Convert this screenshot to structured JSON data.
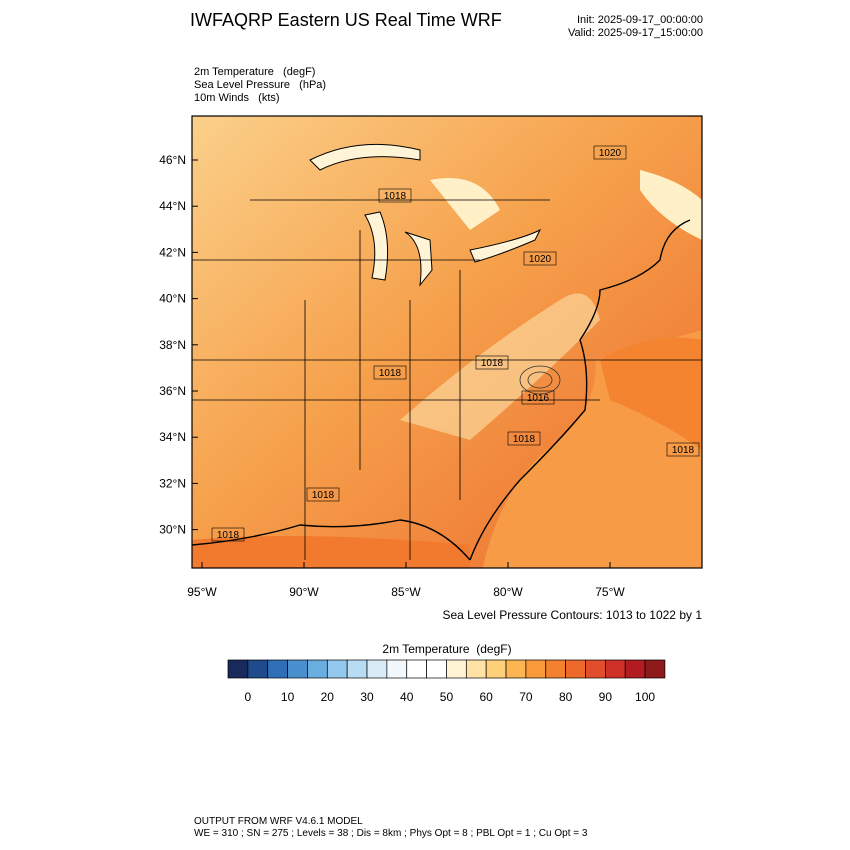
{
  "header": {
    "title": "IWFAQRP Eastern US Real Time WRF",
    "init": "Init: 2025-09-17_00:00:00",
    "valid": "Valid: 2025-09-17_15:00:00",
    "fields": [
      "2m Temperature   (degF)",
      "Sea Level Pressure   (hPa)",
      "10m Winds   (kts)"
    ]
  },
  "map": {
    "lat_ticks": [
      {
        "value": 46,
        "label": "46°N"
      },
      {
        "value": 44,
        "label": "44°N"
      },
      {
        "value": 42,
        "label": "42°N"
      },
      {
        "value": 40,
        "label": "40°N"
      },
      {
        "value": 38,
        "label": "38°N"
      },
      {
        "value": 36,
        "label": "36°N"
      },
      {
        "value": 34,
        "label": "34°N"
      },
      {
        "value": 32,
        "label": "32°N"
      },
      {
        "value": 30,
        "label": "30°N"
      }
    ],
    "lon_ticks": [
      {
        "value": -95,
        "label": "95°W"
      },
      {
        "value": -90,
        "label": "90°W"
      },
      {
        "value": -85,
        "label": "85°W"
      },
      {
        "value": -80,
        "label": "80°W"
      },
      {
        "value": -75,
        "label": "75°W"
      }
    ],
    "contour_labels": [
      "1020",
      "1018",
      "1020",
      "1018",
      "1018",
      "1016",
      "1018",
      "1018",
      "1018",
      "1018"
    ],
    "contour_note": "Sea Level Pressure Contours: 1013 to 1022 by 1"
  },
  "colorbar": {
    "title": "2m Temperature  (degF)",
    "ticks": [
      0,
      10,
      20,
      30,
      40,
      50,
      60,
      70,
      80,
      90,
      100
    ],
    "colors": [
      "#182a5c",
      "#1f4a8c",
      "#2f6fb8",
      "#4a90cf",
      "#6aaee0",
      "#93c9ee",
      "#b7dcf4",
      "#d8ecf8",
      "#f2f8fc",
      "#ffffff",
      "#ffffff",
      "#fff3d4",
      "#ffe3a6",
      "#ffcf7a",
      "#fdb552",
      "#f99b3a",
      "#f4812e",
      "#ee6a2a",
      "#e24e2b",
      "#cf3027",
      "#b31b22",
      "#8e1a1c"
    ]
  },
  "footer": [
    "OUTPUT FROM WRF V4.6.1 MODEL",
    "WE = 310 ; SN = 275 ; Levels = 38 ; Dis = 8km ; Phys Opt = 8 ; PBL Opt = 1 ; Cu Opt = 3"
  ]
}
